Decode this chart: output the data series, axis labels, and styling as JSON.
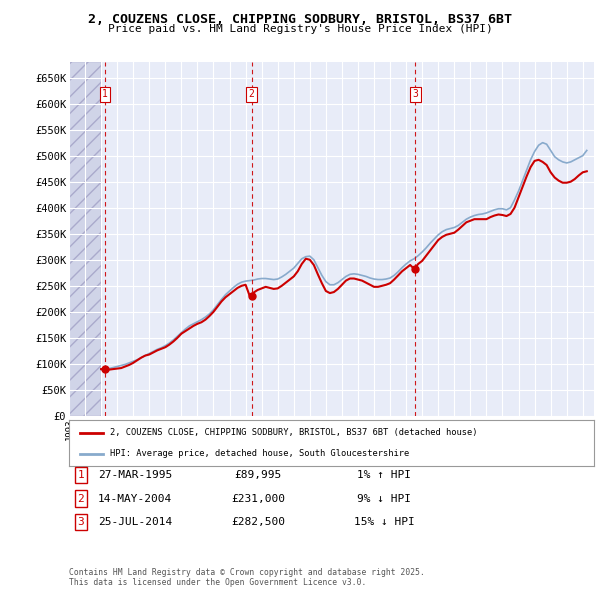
{
  "title_line1": "2, COUZENS CLOSE, CHIPPING SODBURY, BRISTOL, BS37 6BT",
  "title_line2": "Price paid vs. HM Land Registry's House Price Index (HPI)",
  "ylim": [
    0,
    680000
  ],
  "yticks": [
    0,
    50000,
    100000,
    150000,
    200000,
    250000,
    300000,
    350000,
    400000,
    450000,
    500000,
    550000,
    600000,
    650000
  ],
  "ytick_labels": [
    "£0",
    "£50K",
    "£100K",
    "£150K",
    "£200K",
    "£250K",
    "£300K",
    "£350K",
    "£400K",
    "£450K",
    "£500K",
    "£550K",
    "£600K",
    "£650K"
  ],
  "xlim_start": 1993.0,
  "xlim_end": 2025.7,
  "sale_dates_num": [
    1995.24,
    2004.37,
    2014.56
  ],
  "sale_prices": [
    89995,
    231000,
    282500
  ],
  "sale_labels": [
    "1",
    "2",
    "3"
  ],
  "legend_line1": "2, COUZENS CLOSE, CHIPPING SODBURY, BRISTOL, BS37 6BT (detached house)",
  "legend_line2": "HPI: Average price, detached house, South Gloucestershire",
  "table_entries": [
    {
      "num": "1",
      "date": "27-MAR-1995",
      "price": "£89,995",
      "pct": "1% ↑ HPI"
    },
    {
      "num": "2",
      "date": "14-MAY-2004",
      "price": "£231,000",
      "pct": "9% ↓ HPI"
    },
    {
      "num": "3",
      "date": "25-JUL-2014",
      "price": "£282,500",
      "pct": "15% ↓ HPI"
    }
  ],
  "footer": "Contains HM Land Registry data © Crown copyright and database right 2025.\nThis data is licensed under the Open Government Licence v3.0.",
  "red_color": "#cc0000",
  "hpi_color": "#88aacc",
  "bg_color": "#e8ecf8",
  "hpi_data_x": [
    1995.0,
    1995.25,
    1995.5,
    1995.75,
    1996.0,
    1996.25,
    1996.5,
    1996.75,
    1997.0,
    1997.25,
    1997.5,
    1997.75,
    1998.0,
    1998.25,
    1998.5,
    1998.75,
    1999.0,
    1999.25,
    1999.5,
    1999.75,
    2000.0,
    2000.25,
    2000.5,
    2000.75,
    2001.0,
    2001.25,
    2001.5,
    2001.75,
    2002.0,
    2002.25,
    2002.5,
    2002.75,
    2003.0,
    2003.25,
    2003.5,
    2003.75,
    2004.0,
    2004.25,
    2004.5,
    2004.75,
    2005.0,
    2005.25,
    2005.5,
    2005.75,
    2006.0,
    2006.25,
    2006.5,
    2006.75,
    2007.0,
    2007.25,
    2007.5,
    2007.75,
    2008.0,
    2008.25,
    2008.5,
    2008.75,
    2009.0,
    2009.25,
    2009.5,
    2009.75,
    2010.0,
    2010.25,
    2010.5,
    2010.75,
    2011.0,
    2011.25,
    2011.5,
    2011.75,
    2012.0,
    2012.25,
    2012.5,
    2012.75,
    2013.0,
    2013.25,
    2013.5,
    2013.75,
    2014.0,
    2014.25,
    2014.5,
    2014.75,
    2015.0,
    2015.25,
    2015.5,
    2015.75,
    2016.0,
    2016.25,
    2016.5,
    2016.75,
    2017.0,
    2017.25,
    2017.5,
    2017.75,
    2018.0,
    2018.25,
    2018.5,
    2018.75,
    2019.0,
    2019.25,
    2019.5,
    2019.75,
    2020.0,
    2020.25,
    2020.5,
    2020.75,
    2021.0,
    2021.25,
    2021.5,
    2021.75,
    2022.0,
    2022.25,
    2022.5,
    2022.75,
    2023.0,
    2023.25,
    2023.5,
    2023.75,
    2024.0,
    2024.25,
    2024.5,
    2024.75,
    2025.0,
    2025.25
  ],
  "hpi_data_y": [
    89000,
    90000,
    91000,
    93000,
    95000,
    97000,
    99000,
    102000,
    105000,
    108000,
    112000,
    116000,
    120000,
    124000,
    128000,
    131000,
    135000,
    140000,
    146000,
    153000,
    160000,
    167000,
    173000,
    177000,
    181000,
    185000,
    190000,
    196000,
    204000,
    214000,
    224000,
    233000,
    240000,
    247000,
    253000,
    257000,
    259000,
    260000,
    261000,
    263000,
    264000,
    264000,
    263000,
    262000,
    263000,
    267000,
    272000,
    278000,
    284000,
    293000,
    302000,
    306000,
    307000,
    300000,
    285000,
    270000,
    258000,
    252000,
    252000,
    256000,
    262000,
    268000,
    272000,
    273000,
    272000,
    270000,
    268000,
    265000,
    263000,
    262000,
    262000,
    263000,
    265000,
    270000,
    277000,
    285000,
    292000,
    298000,
    302000,
    308000,
    315000,
    323000,
    332000,
    340000,
    348000,
    354000,
    358000,
    360000,
    362000,
    366000,
    372000,
    378000,
    382000,
    385000,
    387000,
    388000,
    390000,
    393000,
    396000,
    398000,
    398000,
    396000,
    400000,
    415000,
    432000,
    452000,
    472000,
    492000,
    508000,
    520000,
    525000,
    522000,
    510000,
    498000,
    492000,
    488000,
    486000,
    488000,
    492000,
    496000,
    500000,
    510000
  ],
  "house_data_x": [
    1995.0,
    1995.25,
    1995.5,
    1995.75,
    1996.0,
    1996.25,
    1996.5,
    1996.75,
    1997.0,
    1997.25,
    1997.5,
    1997.75,
    1998.0,
    1998.25,
    1998.5,
    1998.75,
    1999.0,
    1999.25,
    1999.5,
    1999.75,
    2000.0,
    2000.25,
    2000.5,
    2000.75,
    2001.0,
    2001.25,
    2001.5,
    2001.75,
    2002.0,
    2002.25,
    2002.5,
    2002.75,
    2003.0,
    2003.25,
    2003.5,
    2003.75,
    2004.0,
    2004.25,
    2004.5,
    2004.75,
    2005.0,
    2005.25,
    2005.5,
    2005.75,
    2006.0,
    2006.25,
    2006.5,
    2006.75,
    2007.0,
    2007.25,
    2007.5,
    2007.75,
    2008.0,
    2008.25,
    2008.5,
    2008.75,
    2009.0,
    2009.25,
    2009.5,
    2009.75,
    2010.0,
    2010.25,
    2010.5,
    2010.75,
    2011.0,
    2011.25,
    2011.5,
    2011.75,
    2012.0,
    2012.25,
    2012.5,
    2012.75,
    2013.0,
    2013.25,
    2013.5,
    2013.75,
    2014.0,
    2014.25,
    2014.5,
    2014.75,
    2015.0,
    2015.25,
    2015.5,
    2015.75,
    2016.0,
    2016.25,
    2016.5,
    2016.75,
    2017.0,
    2017.25,
    2017.5,
    2017.75,
    2018.0,
    2018.25,
    2018.5,
    2018.75,
    2019.0,
    2019.25,
    2019.5,
    2019.75,
    2020.0,
    2020.25,
    2020.5,
    2020.75,
    2021.0,
    2021.25,
    2021.5,
    2021.75,
    2022.0,
    2022.25,
    2022.5,
    2022.75,
    2023.0,
    2023.25,
    2023.5,
    2023.75,
    2024.0,
    2024.25,
    2024.5,
    2024.75,
    2025.0,
    2025.25
  ],
  "house_data_y": [
    90000,
    89995,
    89000,
    90000,
    91000,
    92000,
    95000,
    98000,
    102000,
    107000,
    112000,
    116000,
    118000,
    122000,
    126000,
    129000,
    132000,
    137000,
    143000,
    150000,
    158000,
    163000,
    168000,
    173000,
    177000,
    180000,
    185000,
    192000,
    200000,
    210000,
    220000,
    228000,
    234000,
    240000,
    246000,
    250000,
    252000,
    231000,
    237000,
    242000,
    245000,
    248000,
    246000,
    244000,
    245000,
    250000,
    256000,
    262000,
    268000,
    278000,
    292000,
    302000,
    300000,
    290000,
    272000,
    255000,
    240000,
    236000,
    238000,
    244000,
    252000,
    260000,
    264000,
    264000,
    262000,
    260000,
    256000,
    252000,
    248000,
    248000,
    250000,
    252000,
    255000,
    262000,
    270000,
    278000,
    284000,
    290000,
    282500,
    292000,
    298000,
    308000,
    318000,
    328000,
    338000,
    344000,
    348000,
    350000,
    352000,
    358000,
    365000,
    372000,
    375000,
    378000,
    378000,
    378000,
    378000,
    382000,
    385000,
    387000,
    386000,
    384000,
    388000,
    400000,
    420000,
    440000,
    460000,
    478000,
    490000,
    492000,
    488000,
    482000,
    468000,
    458000,
    452000,
    448000,
    448000,
    450000,
    455000,
    462000,
    468000,
    470000
  ]
}
